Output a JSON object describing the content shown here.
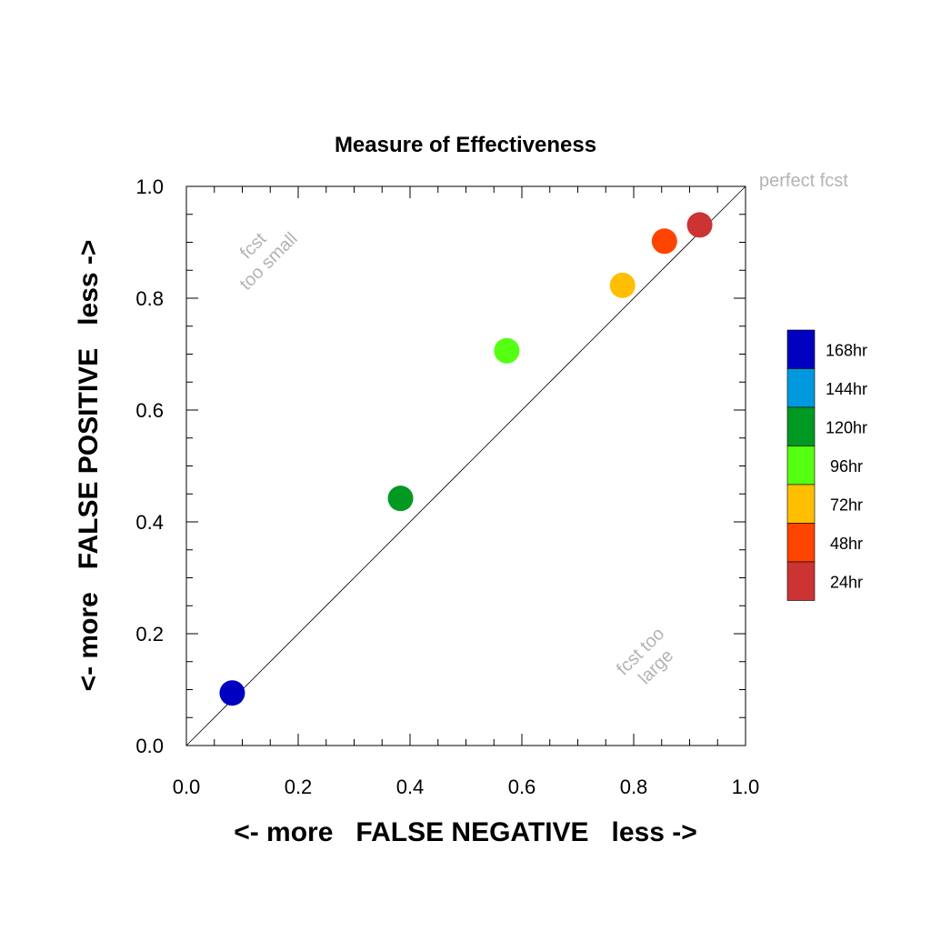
{
  "chart_data": {
    "type": "scatter",
    "title": "Measure of Effectiveness",
    "xlabel": "<- more   FALSE NEGATIVE   less ->",
    "ylabel": "<- more   FALSE POSITIVE   less ->",
    "xlim": [
      0.0,
      1.0
    ],
    "ylim": [
      0.0,
      1.0
    ],
    "xticks": [
      "0.0",
      "0.2",
      "0.4",
      "0.6",
      "0.8",
      "1.0"
    ],
    "yticks": [
      "0.0",
      "0.2",
      "0.4",
      "0.6",
      "0.8",
      "1.0"
    ],
    "grid": false,
    "legend_position": "right",
    "reference_line": {
      "from": [
        0,
        0
      ],
      "to": [
        1,
        1
      ]
    },
    "annotations": {
      "perfect": "perfect fcst",
      "small_line1": "fcst",
      "small_line2": "too small",
      "large_line1": "fcst too",
      "large_line2": "large"
    },
    "series": [
      {
        "name": "168hr",
        "color": "#0000c0",
        "x": 0.082,
        "y": 0.094
      },
      {
        "name": "144hr",
        "color": "#0099dd",
        "x": null,
        "y": null
      },
      {
        "name": "120hr",
        "color": "#009922",
        "x": 0.383,
        "y": 0.442
      },
      {
        "name": "96hr",
        "color": "#55ff11",
        "x": 0.573,
        "y": 0.706
      },
      {
        "name": "72hr",
        "color": "#ffbf00",
        "x": 0.78,
        "y": 0.823
      },
      {
        "name": "48hr",
        "color": "#ff4400",
        "x": 0.855,
        "y": 0.902
      },
      {
        "name": "24hr",
        "color": "#cc3333",
        "x": 0.918,
        "y": 0.931
      }
    ]
  }
}
